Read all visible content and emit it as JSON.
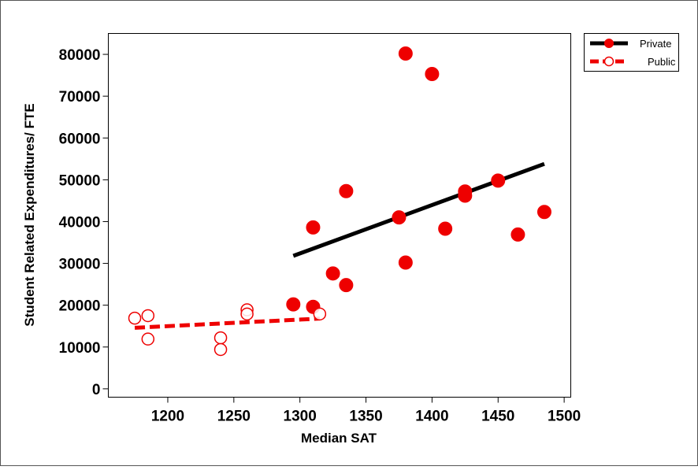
{
  "chart_data": {
    "type": "scatter",
    "title": "",
    "xlabel": "Median SAT",
    "ylabel": "Student Related Expenditures/ FTE",
    "xlim": [
      1155,
      1505
    ],
    "ylim": [
      -2000,
      85000
    ],
    "xticks": [
      1200,
      1250,
      1300,
      1350,
      1400,
      1450,
      1500
    ],
    "yticks": [
      0,
      10000,
      20000,
      30000,
      40000,
      50000,
      60000,
      70000,
      80000
    ],
    "grid": false,
    "legend_position": "top-right",
    "series": [
      {
        "name": "Private",
        "color": "#ee0000",
        "marker": "filled-circle",
        "line_color": "#000000",
        "line_style": "solid",
        "points": [
          {
            "x": 1295,
            "y": 20200
          },
          {
            "x": 1310,
            "y": 38600
          },
          {
            "x": 1310,
            "y": 19600
          },
          {
            "x": 1325,
            "y": 27600
          },
          {
            "x": 1335,
            "y": 47300
          },
          {
            "x": 1335,
            "y": 24800
          },
          {
            "x": 1375,
            "y": 41000
          },
          {
            "x": 1380,
            "y": 80200
          },
          {
            "x": 1380,
            "y": 30200
          },
          {
            "x": 1400,
            "y": 75300
          },
          {
            "x": 1410,
            "y": 38300
          },
          {
            "x": 1425,
            "y": 47200
          },
          {
            "x": 1425,
            "y": 46200
          },
          {
            "x": 1450,
            "y": 49800
          },
          {
            "x": 1465,
            "y": 36900
          },
          {
            "x": 1485,
            "y": 42300
          }
        ],
        "fit_line": [
          {
            "x": 1295,
            "y": 31800
          },
          {
            "x": 1485,
            "y": 53800
          }
        ]
      },
      {
        "name": "Public",
        "color": "#ee0000",
        "marker": "open-circle",
        "line_color": "#ee0000",
        "line_style": "dashed",
        "points": [
          {
            "x": 1175,
            "y": 16900
          },
          {
            "x": 1185,
            "y": 17500
          },
          {
            "x": 1185,
            "y": 11900
          },
          {
            "x": 1240,
            "y": 12200
          },
          {
            "x": 1240,
            "y": 9400
          },
          {
            "x": 1260,
            "y": 18900
          },
          {
            "x": 1260,
            "y": 17900
          },
          {
            "x": 1315,
            "y": 17900
          }
        ],
        "fit_line": [
          {
            "x": 1175,
            "y": 14600
          },
          {
            "x": 1315,
            "y": 16800
          }
        ]
      }
    ]
  }
}
